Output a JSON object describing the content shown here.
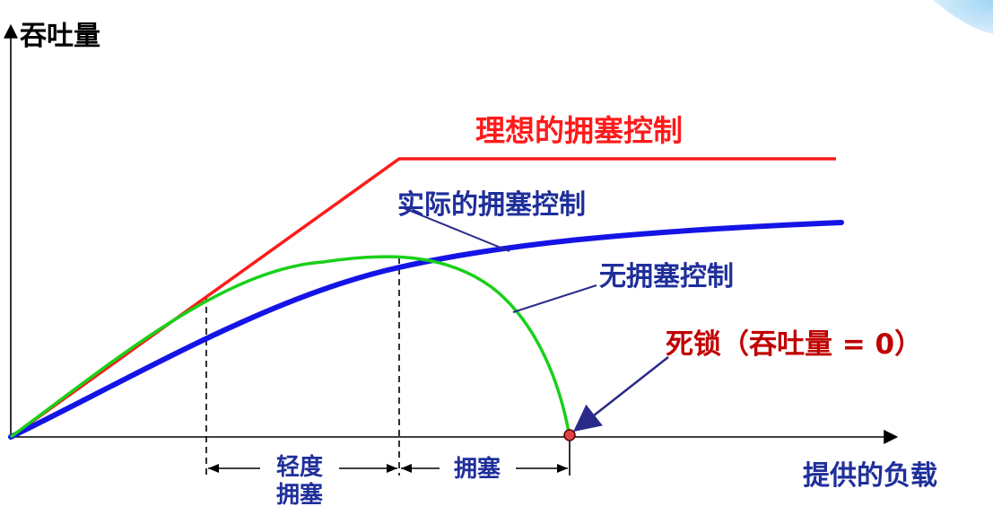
{
  "axes": {
    "y_label": "吞吐量",
    "x_label": "提供的负载"
  },
  "curves": {
    "ideal": {
      "label": "理想的拥塞控制",
      "color": "#ff1a1a"
    },
    "actual": {
      "label": "实际的拥塞控制",
      "color": "#1414e6"
    },
    "none": {
      "label": "无拥塞控制",
      "color": "#19d019"
    }
  },
  "deadlock": {
    "label": "死锁（吞吐量 = 0）",
    "color": "#c00000"
  },
  "regions": {
    "light": {
      "line1": "轻度",
      "line2": "拥塞"
    },
    "congested": {
      "label": "拥塞"
    }
  },
  "colors": {
    "axis": "#000000",
    "text_blue": "#1f2f9a",
    "pointer": "#2a2a8a"
  }
}
